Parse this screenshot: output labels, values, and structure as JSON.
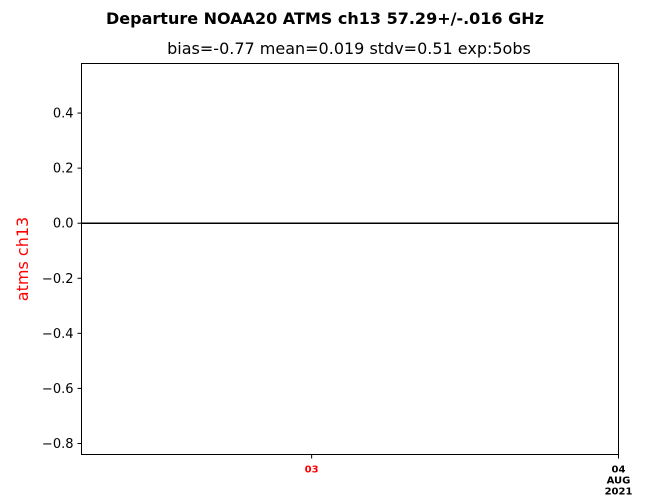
{
  "chart_data": {
    "type": "line",
    "title": "Departure NOAA20 ATMS ch13 57.29+/-.016 GHz",
    "subtitle": "bias=-0.77  mean=0.019  stdv=0.51  exp:5obs",
    "ylabel": "atms ch13",
    "ylabel_color": "#ff0000",
    "ylim": [
      -0.84,
      0.58
    ],
    "xlim": [
      "2021-08-02T06:00",
      "2021-08-04T00:00"
    ],
    "y_ticks": [
      {
        "value": 0.4,
        "label": "0.4"
      },
      {
        "value": 0.2,
        "label": "0.2"
      },
      {
        "value": 0.0,
        "label": "0.0"
      },
      {
        "value": -0.2,
        "label": "−0.2"
      },
      {
        "value": -0.4,
        "label": "−0.4"
      },
      {
        "value": -0.6,
        "label": "−0.6"
      },
      {
        "value": -0.8,
        "label": "−0.8"
      }
    ],
    "x_ticks": [
      {
        "value": "2021-08-03T00:00",
        "lines": [
          "03"
        ],
        "color": "#ff0000"
      },
      {
        "value": "2021-08-04T00:00",
        "lines": [
          "04",
          "AUG",
          "2021"
        ],
        "color": "#000000"
      }
    ],
    "reference_line": {
      "y": 0.0,
      "color": "#000000"
    },
    "series": [],
    "grid": false
  }
}
